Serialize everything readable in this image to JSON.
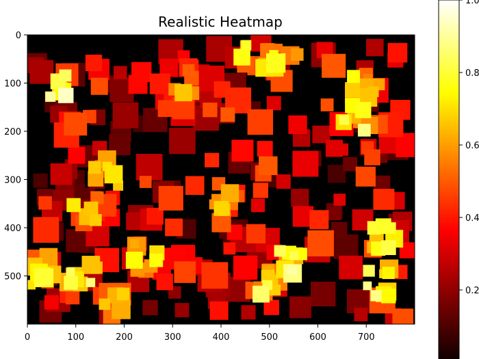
{
  "chart_data": {
    "type": "heatmap",
    "title": "Realistic Heatmap",
    "xlabel": "",
    "ylabel": "",
    "colormap": "hot",
    "background_color": "#000000",
    "xlim": [
      0,
      800
    ],
    "ylim": [
      600,
      0
    ],
    "x_ticks": [
      0,
      100,
      200,
      300,
      400,
      500,
      600,
      700
    ],
    "y_ticks": [
      0,
      100,
      200,
      300,
      400,
      500
    ],
    "y_tick_labels": [
      "0",
      "100",
      "200",
      "300",
      "400",
      "500"
    ],
    "colorbar": {
      "range": [
        0.0,
        1.0
      ],
      "ticks": [
        1.0,
        0.8,
        0.6,
        0.4,
        0.2
      ],
      "tick_labels": [
        "1.0",
        "0.8",
        "0.6",
        "0.4",
        "0.2"
      ]
    },
    "hotspots": [
      {
        "x": 70,
        "y": 100,
        "value": 0.95
      },
      {
        "x": 115,
        "y": 505,
        "value": 0.92
      },
      {
        "x": 35,
        "y": 490,
        "value": 0.85
      },
      {
        "x": 545,
        "y": 475,
        "value": 0.95
      },
      {
        "x": 490,
        "y": 510,
        "value": 0.88
      },
      {
        "x": 680,
        "y": 175,
        "value": 0.92
      },
      {
        "x": 730,
        "y": 515,
        "value": 0.9
      },
      {
        "x": 730,
        "y": 420,
        "value": 0.82
      },
      {
        "x": 530,
        "y": 55,
        "value": 0.78
      },
      {
        "x": 470,
        "y": 40,
        "value": 0.8
      },
      {
        "x": 700,
        "y": 100,
        "value": 0.8
      },
      {
        "x": 160,
        "y": 285,
        "value": 0.78
      },
      {
        "x": 250,
        "y": 460,
        "value": 0.8
      },
      {
        "x": 125,
        "y": 360,
        "value": 0.72
      },
      {
        "x": 390,
        "y": 335,
        "value": 0.7
      },
      {
        "x": 315,
        "y": 95,
        "value": 0.7
      },
      {
        "x": 175,
        "y": 555,
        "value": 0.68
      }
    ]
  }
}
